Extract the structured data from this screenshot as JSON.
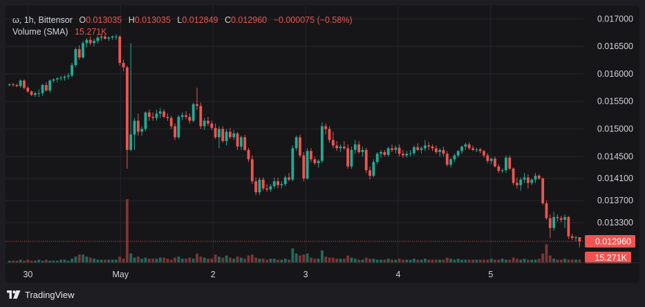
{
  "legend": {
    "symbol": "ω, 1h, Bittensor",
    "o_label": "O",
    "o_value": "0.013035",
    "h_label": "H",
    "h_value": "0.013035",
    "l_label": "L",
    "l_value": "0.012849",
    "c_label": "C",
    "c_value": "0.012960",
    "change": "−0.000075 (−0.58%)",
    "volume_label": "Volume (SMA)",
    "volume_value": "15.271K"
  },
  "branding": {
    "name": "TradingView"
  },
  "colors": {
    "up": "#22ab94",
    "down": "#f05350",
    "up_volume": "#1f6b5e",
    "down_volume": "#7d3533",
    "grid": "#26262b",
    "background": "#161618"
  },
  "chart_data": {
    "type": "candlestick",
    "y_axis": {
      "ticks": [
        "0.017000",
        "0.016500",
        "0.016000",
        "0.015500",
        "0.015000",
        "0.014500",
        "0.014100",
        "0.013700",
        "0.013300"
      ],
      "range": [
        0.01257,
        0.01718
      ],
      "last_price_label": "0.012960",
      "last_price": 0.01296,
      "volume_label": "15.271K"
    },
    "x_axis": {
      "ticks": [
        "30",
        "May",
        "2",
        "3",
        "4",
        "5"
      ]
    },
    "candles": [
      [
        0.0158,
        0.01583,
        0.01578,
        0.01581
      ],
      [
        0.01581,
        0.01584,
        0.01577,
        0.0158
      ],
      [
        0.0158,
        0.01582,
        0.01576,
        0.01578
      ],
      [
        0.01578,
        0.0159,
        0.01575,
        0.01588
      ],
      [
        0.01588,
        0.0159,
        0.01572,
        0.01575
      ],
      [
        0.01575,
        0.01578,
        0.01566,
        0.01568
      ],
      [
        0.01568,
        0.0157,
        0.0156,
        0.01562
      ],
      [
        0.01562,
        0.01568,
        0.01558,
        0.01565
      ],
      [
        0.01565,
        0.01572,
        0.01558,
        0.01565
      ],
      [
        0.01565,
        0.01582,
        0.0156,
        0.0158
      ],
      [
        0.0158,
        0.01585,
        0.01568,
        0.0157
      ],
      [
        0.0157,
        0.0159,
        0.01566,
        0.01588
      ],
      [
        0.01588,
        0.01592,
        0.01584,
        0.0159
      ],
      [
        0.0159,
        0.01594,
        0.01585,
        0.01592
      ],
      [
        0.01592,
        0.01597,
        0.01588,
        0.01593
      ],
      [
        0.01593,
        0.01598,
        0.01588,
        0.01595
      ],
      [
        0.01595,
        0.01602,
        0.0159,
        0.01597
      ],
      [
        0.01597,
        0.0162,
        0.01594,
        0.01616
      ],
      [
        0.01616,
        0.01648,
        0.01612,
        0.01645
      ],
      [
        0.01645,
        0.01652,
        0.01626,
        0.0163
      ],
      [
        0.0163,
        0.0166,
        0.01628,
        0.01656
      ],
      [
        0.01656,
        0.01665,
        0.01648,
        0.01662
      ],
      [
        0.01662,
        0.01668,
        0.01652,
        0.01656
      ],
      [
        0.01656,
        0.01664,
        0.0165,
        0.0166
      ],
      [
        0.0166,
        0.0167,
        0.01655,
        0.01666
      ],
      [
        0.01666,
        0.01672,
        0.0166,
        0.01668
      ],
      [
        0.01668,
        0.01672,
        0.01662,
        0.01664
      ],
      [
        0.01664,
        0.01668,
        0.0166,
        0.01666
      ],
      [
        0.01666,
        0.0167,
        0.01662,
        0.01668
      ],
      [
        0.01668,
        0.01672,
        0.01662,
        0.01668
      ],
      [
        0.01668,
        0.0167,
        0.01615,
        0.0162
      ],
      [
        0.0162,
        0.01626,
        0.01605,
        0.01612
      ],
      [
        0.01612,
        0.01615,
        0.01428,
        0.01462
      ],
      [
        0.01462,
        0.01656,
        0.0146,
        0.0149
      ],
      [
        0.0149,
        0.0152,
        0.01462,
        0.01515
      ],
      [
        0.01515,
        0.01528,
        0.01488,
        0.01495
      ],
      [
        0.01495,
        0.01505,
        0.01488,
        0.015
      ],
      [
        0.015,
        0.01532,
        0.01496,
        0.0153
      ],
      [
        0.0153,
        0.01535,
        0.01515,
        0.01522
      ],
      [
        0.01522,
        0.0153,
        0.01515,
        0.0152
      ],
      [
        0.0152,
        0.01535,
        0.01515,
        0.01528
      ],
      [
        0.01528,
        0.01538,
        0.0152,
        0.01532
      ],
      [
        0.01532,
        0.01536,
        0.0152,
        0.01522
      ],
      [
        0.01522,
        0.01528,
        0.01515,
        0.0152
      ],
      [
        0.0152,
        0.01524,
        0.015,
        0.01505
      ],
      [
        0.01505,
        0.0151,
        0.0148,
        0.01485
      ],
      [
        0.01485,
        0.01525,
        0.01482,
        0.01522
      ],
      [
        0.01522,
        0.0153,
        0.01516,
        0.01525
      ],
      [
        0.01525,
        0.01532,
        0.01518,
        0.01522
      ],
      [
        0.01522,
        0.01528,
        0.0151,
        0.01515
      ],
      [
        0.01515,
        0.01548,
        0.01512,
        0.01545
      ],
      [
        0.01545,
        0.01575,
        0.01535,
        0.01542
      ],
      [
        0.01542,
        0.01548,
        0.015,
        0.01505
      ],
      [
        0.01505,
        0.0152,
        0.01498,
        0.01515
      ],
      [
        0.01515,
        0.01522,
        0.01505,
        0.0151
      ],
      [
        0.0151,
        0.01515,
        0.01498,
        0.01502
      ],
      [
        0.01502,
        0.0151,
        0.01482,
        0.01485
      ],
      [
        0.01485,
        0.01505,
        0.01465,
        0.015
      ],
      [
        0.015,
        0.01505,
        0.01475,
        0.01478
      ],
      [
        0.01478,
        0.015,
        0.0147,
        0.01495
      ],
      [
        0.01495,
        0.01502,
        0.01482,
        0.01485
      ],
      [
        0.01485,
        0.01498,
        0.0148,
        0.01492
      ],
      [
        0.01492,
        0.01495,
        0.01462,
        0.01468
      ],
      [
        0.01468,
        0.01488,
        0.01462,
        0.01485
      ],
      [
        0.01485,
        0.0149,
        0.0146,
        0.01462
      ],
      [
        0.01462,
        0.01466,
        0.0144,
        0.01445
      ],
      [
        0.01445,
        0.01452,
        0.014,
        0.01405
      ],
      [
        0.01405,
        0.01412,
        0.0138,
        0.01385
      ],
      [
        0.01385,
        0.01412,
        0.0138,
        0.01408
      ],
      [
        0.01408,
        0.01412,
        0.01388,
        0.01392
      ],
      [
        0.01392,
        0.014,
        0.01386,
        0.0139
      ],
      [
        0.0139,
        0.014,
        0.01386,
        0.01396
      ],
      [
        0.01396,
        0.01412,
        0.01392,
        0.01405
      ],
      [
        0.01405,
        0.01412,
        0.01392,
        0.01398
      ],
      [
        0.01398,
        0.01405,
        0.01392,
        0.014
      ],
      [
        0.014,
        0.01415,
        0.01396,
        0.01412
      ],
      [
        0.01412,
        0.0142,
        0.01405,
        0.01408
      ],
      [
        0.01408,
        0.0147,
        0.01405,
        0.01465
      ],
      [
        0.01465,
        0.01488,
        0.0146,
        0.01485
      ],
      [
        0.01485,
        0.0149,
        0.01448,
        0.01452
      ],
      [
        0.01452,
        0.01458,
        0.01405,
        0.0141
      ],
      [
        0.0141,
        0.01465,
        0.01408,
        0.0146
      ],
      [
        0.0146,
        0.01465,
        0.0144,
        0.01445
      ],
      [
        0.01445,
        0.0145,
        0.01435,
        0.01438
      ],
      [
        0.01438,
        0.01445,
        0.0143,
        0.01442
      ],
      [
        0.01442,
        0.01512,
        0.01438,
        0.01505
      ],
      [
        0.01505,
        0.0151,
        0.0149,
        0.015
      ],
      [
        0.015,
        0.01505,
        0.01475,
        0.0148
      ],
      [
        0.0148,
        0.01495,
        0.01465,
        0.0147
      ],
      [
        0.0147,
        0.01478,
        0.0146,
        0.01465
      ],
      [
        0.01465,
        0.01472,
        0.01458,
        0.01468
      ],
      [
        0.01468,
        0.01478,
        0.01462,
        0.01465
      ],
      [
        0.01465,
        0.01472,
        0.01428,
        0.01432
      ],
      [
        0.01432,
        0.01468,
        0.01428,
        0.01462
      ],
      [
        0.01462,
        0.0148,
        0.01455,
        0.01472
      ],
      [
        0.01472,
        0.01478,
        0.01455,
        0.01458
      ],
      [
        0.01458,
        0.01468,
        0.0145,
        0.01462
      ],
      [
        0.01462,
        0.01466,
        0.0142,
        0.01425
      ],
      [
        0.01425,
        0.01432,
        0.01408,
        0.01415
      ],
      [
        0.01415,
        0.01445,
        0.01412,
        0.0144
      ],
      [
        0.0144,
        0.01458,
        0.01436,
        0.01455
      ],
      [
        0.01455,
        0.01462,
        0.01448,
        0.01458
      ],
      [
        0.01458,
        0.01462,
        0.0145,
        0.01453
      ],
      [
        0.01453,
        0.01468,
        0.0145,
        0.01465
      ],
      [
        0.01465,
        0.01472,
        0.01458,
        0.01462
      ],
      [
        0.01462,
        0.0147,
        0.01456,
        0.01466
      ],
      [
        0.01466,
        0.01472,
        0.0145,
        0.01455
      ],
      [
        0.01455,
        0.01462,
        0.01448,
        0.01452
      ],
      [
        0.01452,
        0.0146,
        0.01448,
        0.01455
      ],
      [
        0.01455,
        0.01462,
        0.0145,
        0.01456
      ],
      [
        0.01456,
        0.0147,
        0.01452,
        0.01467
      ],
      [
        0.01467,
        0.01474,
        0.0146,
        0.01462
      ],
      [
        0.01462,
        0.01468,
        0.01455,
        0.01465
      ],
      [
        0.01465,
        0.0148,
        0.0146,
        0.0147
      ],
      [
        0.0147,
        0.01476,
        0.01462,
        0.01468
      ],
      [
        0.01468,
        0.01472,
        0.0146,
        0.01465
      ],
      [
        0.01465,
        0.0147,
        0.01455,
        0.01458
      ],
      [
        0.01458,
        0.01465,
        0.0145,
        0.01462
      ],
      [
        0.01462,
        0.01468,
        0.0145,
        0.01455
      ],
      [
        0.01455,
        0.0146,
        0.01432,
        0.01435
      ],
      [
        0.01435,
        0.01448,
        0.0143,
        0.01445
      ],
      [
        0.01445,
        0.01455,
        0.0144,
        0.01452
      ],
      [
        0.01452,
        0.01462,
        0.01448,
        0.0146
      ],
      [
        0.0146,
        0.0147,
        0.01455,
        0.01468
      ],
      [
        0.01468,
        0.01475,
        0.01462,
        0.01472
      ],
      [
        0.01472,
        0.01476,
        0.01462,
        0.01465
      ],
      [
        0.01465,
        0.0147,
        0.0146,
        0.01462
      ],
      [
        0.01462,
        0.01466,
        0.01458,
        0.01463
      ],
      [
        0.01463,
        0.01466,
        0.01456,
        0.0146
      ],
      [
        0.0146,
        0.01462,
        0.01448,
        0.01452
      ],
      [
        0.01452,
        0.01456,
        0.01438,
        0.01442
      ],
      [
        0.01442,
        0.01448,
        0.01436,
        0.01446
      ],
      [
        0.01446,
        0.0145,
        0.0143,
        0.01432
      ],
      [
        0.01432,
        0.01436,
        0.0142,
        0.01424
      ],
      [
        0.01424,
        0.01428,
        0.0142,
        0.01425
      ],
      [
        0.01425,
        0.01452,
        0.0142,
        0.01448
      ],
      [
        0.01448,
        0.01452,
        0.01425,
        0.01428
      ],
      [
        0.01428,
        0.0143,
        0.01398,
        0.01402
      ],
      [
        0.01402,
        0.01412,
        0.01392,
        0.01398
      ],
      [
        0.01398,
        0.01412,
        0.01388,
        0.01408
      ],
      [
        0.01408,
        0.0142,
        0.01402,
        0.01412
      ],
      [
        0.01412,
        0.01418,
        0.01392,
        0.01402
      ],
      [
        0.01402,
        0.0141,
        0.01398,
        0.01408
      ],
      [
        0.01408,
        0.0142,
        0.01402,
        0.01415
      ],
      [
        0.01415,
        0.01418,
        0.01408,
        0.0141
      ],
      [
        0.0141,
        0.01412,
        0.01362,
        0.01365
      ],
      [
        0.01365,
        0.0137,
        0.01335,
        0.01338
      ],
      [
        0.01338,
        0.01345,
        0.01302,
        0.0132
      ],
      [
        0.0132,
        0.0135,
        0.01315,
        0.0134
      ],
      [
        0.0134,
        0.01345,
        0.01332,
        0.01338
      ],
      [
        0.01338,
        0.01342,
        0.0133,
        0.01335
      ],
      [
        0.01335,
        0.01345,
        0.0132,
        0.0134
      ],
      [
        0.0134,
        0.01342,
        0.013,
        0.01305
      ],
      [
        0.01305,
        0.0131,
        0.01298,
        0.01302
      ],
      [
        0.01302,
        0.01306,
        0.01296,
        0.01303
      ],
      [
        0.013035,
        0.013035,
        0.012849,
        0.01296
      ]
    ],
    "volume": [
      2,
      2,
      2,
      3,
      2,
      3,
      2,
      2,
      3,
      2,
      3,
      2,
      2,
      2,
      3,
      3,
      2,
      4,
      6,
      8,
      8,
      6,
      5,
      4,
      3,
      3,
      3,
      3,
      3,
      3,
      6,
      4,
      62,
      9,
      5,
      6,
      4,
      5,
      4,
      4,
      4,
      5,
      5,
      4,
      3,
      5,
      6,
      4,
      4,
      5,
      4,
      9,
      6,
      5,
      4,
      4,
      8,
      6,
      5,
      7,
      5,
      4,
      6,
      5,
      4,
      7,
      8,
      5,
      4,
      4,
      3,
      4,
      4,
      3,
      3,
      4,
      3,
      14,
      9,
      7,
      8,
      9,
      5,
      4,
      4,
      12,
      6,
      5,
      5,
      4,
      4,
      4,
      7,
      5,
      4,
      3,
      3,
      5,
      4,
      4,
      3,
      3,
      3,
      4,
      3,
      3,
      4,
      3,
      3,
      3,
      4,
      3,
      3,
      4,
      3,
      3,
      3,
      3,
      3,
      5,
      4,
      3,
      4,
      3,
      3,
      3,
      3,
      3,
      3,
      3,
      3,
      4,
      3,
      3,
      4,
      3,
      3,
      5,
      4,
      3,
      4,
      3,
      3,
      3,
      4,
      9,
      18,
      7,
      4,
      3,
      3,
      4,
      3,
      3,
      3,
      3
    ],
    "x_tick_index": {
      "30": 4,
      "May": 24,
      "2": 44,
      "3": 64,
      "4": 84,
      "5": 104
    }
  }
}
